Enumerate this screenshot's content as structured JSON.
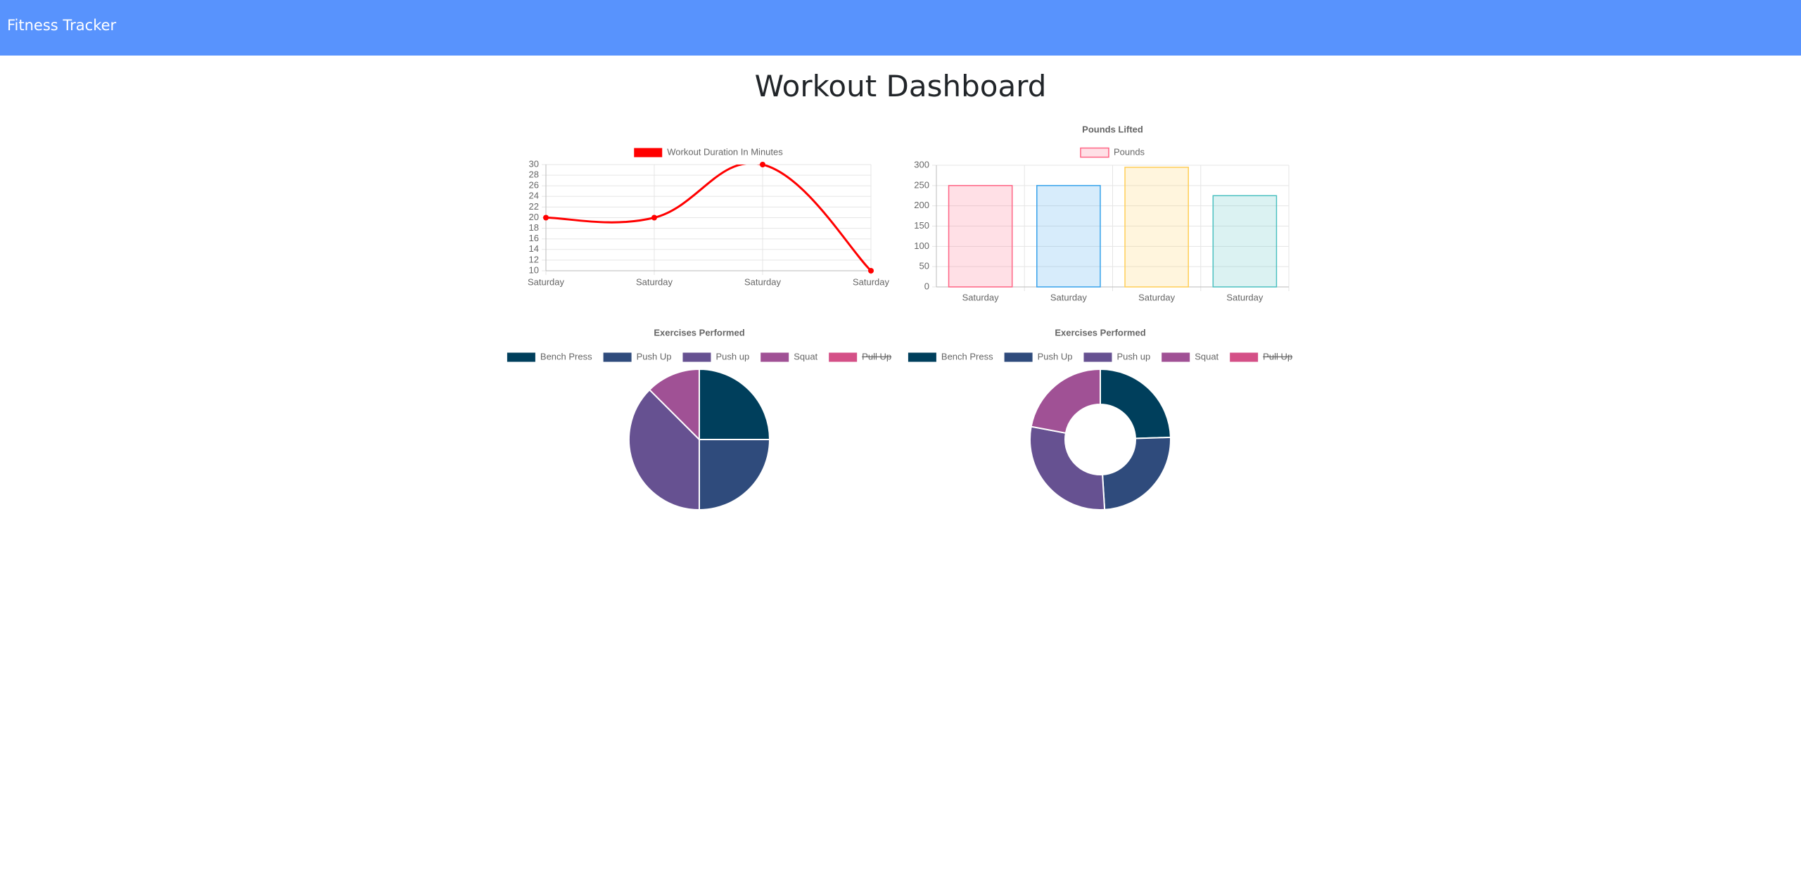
{
  "nav": {
    "brand": "Fitness Tracker"
  },
  "heading": "Workout Dashboard",
  "chart_data": [
    {
      "type": "line",
      "categories": [
        "Saturday",
        "Saturday",
        "Saturday",
        "Saturday"
      ],
      "series": [
        {
          "name": "Workout Duration In Minutes",
          "color": "#ff0000",
          "values": [
            20,
            20,
            30,
            10
          ]
        }
      ],
      "ylim": [
        10,
        30
      ],
      "yticks": [
        10,
        12,
        14,
        16,
        18,
        20,
        22,
        24,
        26,
        28,
        30
      ],
      "grid": true
    },
    {
      "type": "bar",
      "title": "Pounds Lifted",
      "categories": [
        "Saturday",
        "Saturday",
        "Saturday",
        "Saturday"
      ],
      "series": [
        {
          "name": "Pounds",
          "values": [
            250,
            250,
            295,
            225
          ],
          "colors": [
            "rgba(255,99,132,0.2)",
            "rgba(54,162,235,0.2)",
            "rgba(255,206,86,0.2)",
            "rgba(75,192,192,0.2)"
          ],
          "border_colors": [
            "#ff6384",
            "#36a2eb",
            "#ffce56",
            "#4bc0c0"
          ]
        }
      ],
      "ylim": [
        0,
        300
      ],
      "yticks": [
        0,
        50,
        100,
        150,
        200,
        250,
        300
      ],
      "grid": true
    },
    {
      "type": "pie",
      "title": "Exercises Performed",
      "categories": [
        "Bench Press",
        "Push Up",
        "Push up",
        "Squat",
        "Pull Up"
      ],
      "values": [
        20,
        20,
        30,
        10,
        null
      ],
      "hidden": [
        false,
        false,
        false,
        false,
        true
      ],
      "colors": [
        "#003f5c",
        "#2f4b7c",
        "#665191",
        "#a05195",
        "#d45087"
      ]
    },
    {
      "type": "doughnut",
      "title": "Exercises Performed",
      "categories": [
        "Bench Press",
        "Push Up",
        "Push up",
        "Squat",
        "Pull Up"
      ],
      "values": [
        250,
        250,
        295,
        225,
        null
      ],
      "hidden": [
        false,
        false,
        false,
        false,
        true
      ],
      "colors": [
        "#003f5c",
        "#2f4b7c",
        "#665191",
        "#a05195",
        "#d45087"
      ]
    }
  ]
}
